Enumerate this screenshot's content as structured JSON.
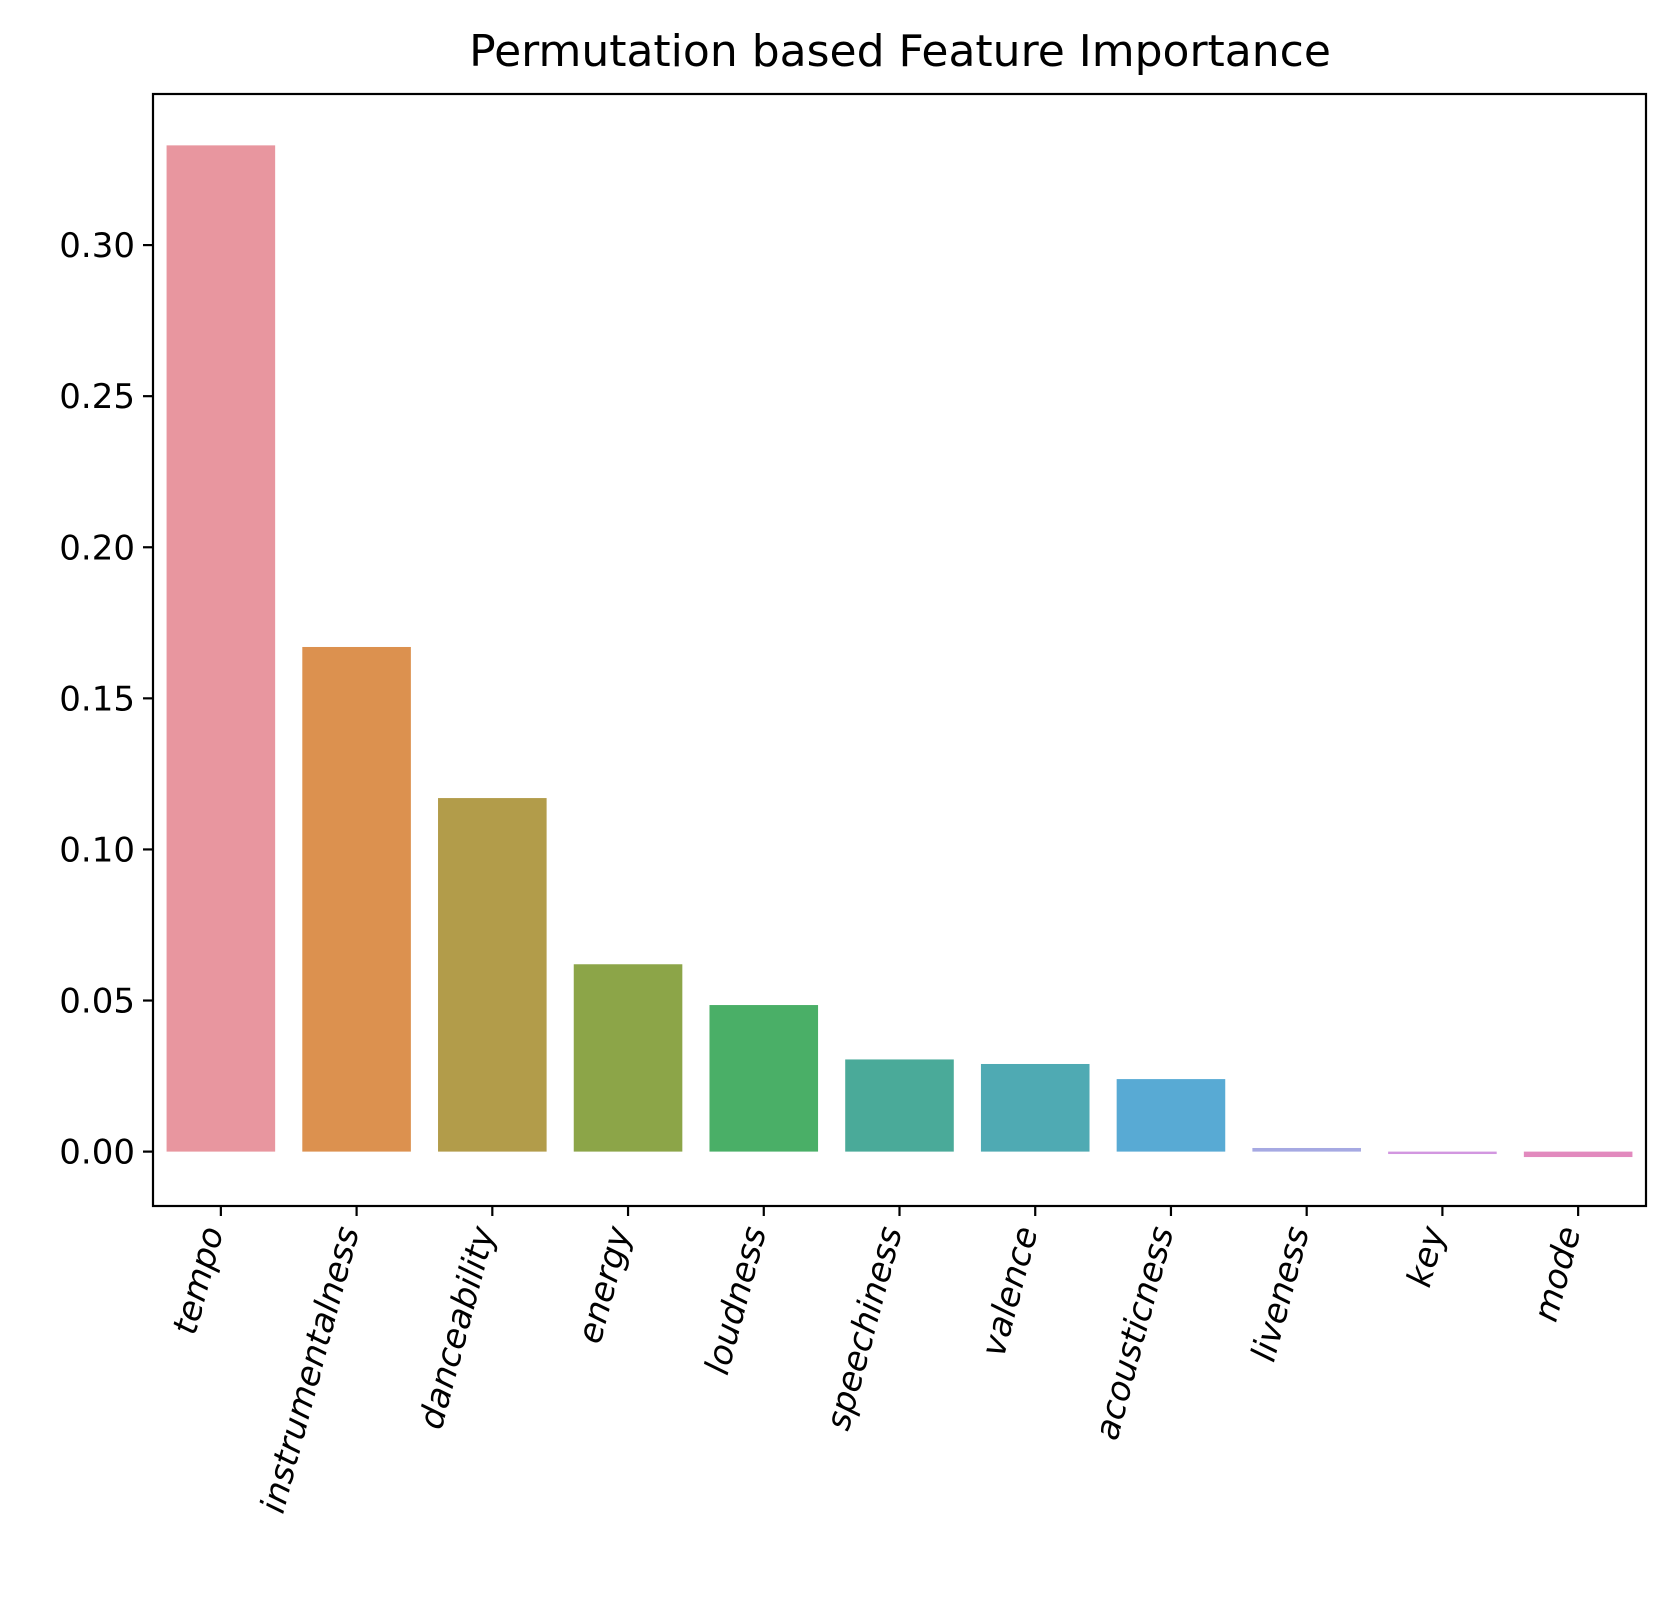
{
  "chart_data": {
    "type": "bar",
    "title": "Permutation based Feature Importance",
    "xlabel": "",
    "ylabel": "",
    "categories": [
      "tempo",
      "instrumentalness",
      "danceability",
      "energy",
      "loudness",
      "speechiness",
      "valence",
      "acousticness",
      "liveness",
      "key",
      "mode"
    ],
    "values": [
      0.333,
      0.167,
      0.117,
      0.062,
      0.0485,
      0.0305,
      0.029,
      0.024,
      0.0012,
      -0.0008,
      -0.0018
    ],
    "colors": [
      "#e8969f",
      "#dc914f",
      "#b29c4a",
      "#8ca548",
      "#4aaf67",
      "#4aaa99",
      "#4faab3",
      "#58aad4",
      "#a6a9e2",
      "#d297e0",
      "#e28abe"
    ],
    "ylim": [
      -0.018,
      0.35
    ],
    "yticks": [
      0.0,
      0.05,
      0.1,
      0.15,
      0.2,
      0.25,
      0.3
    ],
    "ytick_labels": [
      "0.00",
      "0.05",
      "0.10",
      "0.15",
      "0.20",
      "0.25",
      "0.30"
    ],
    "xtick_rotation_deg": 75,
    "grid": false,
    "legend": "none"
  }
}
